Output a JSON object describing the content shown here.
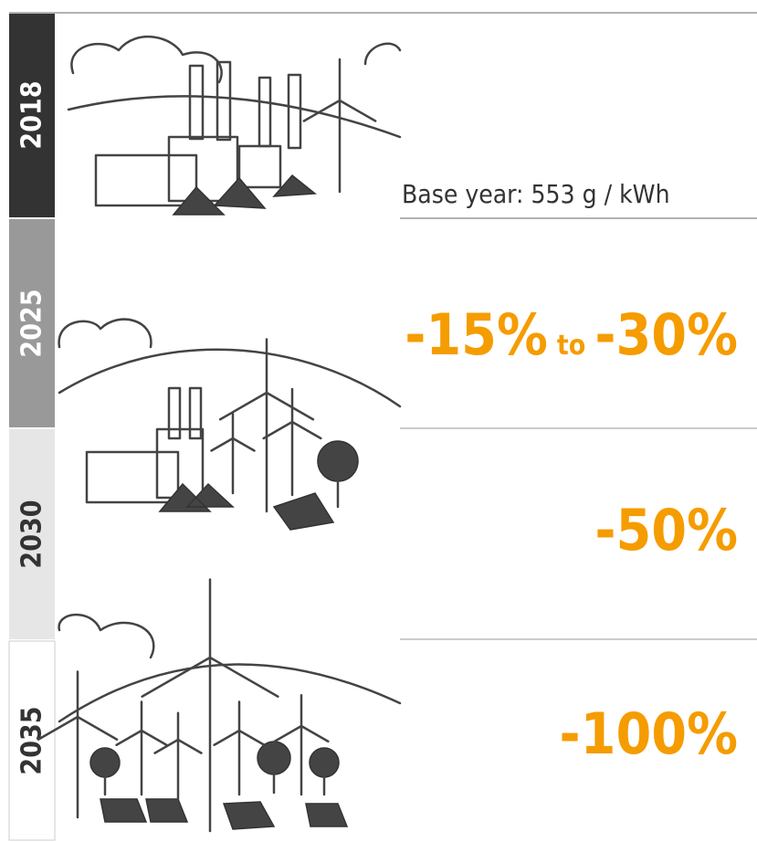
{
  "rows": [
    {
      "year": "2018",
      "text": "Base year: 553 g / kWh"
    },
    {
      "year": "2025",
      "from": "-15%",
      "joiner": "to",
      "upto": "-30%"
    },
    {
      "year": "2030",
      "text": "-50%"
    },
    {
      "year": "2035",
      "text": "-100%"
    }
  ]
}
